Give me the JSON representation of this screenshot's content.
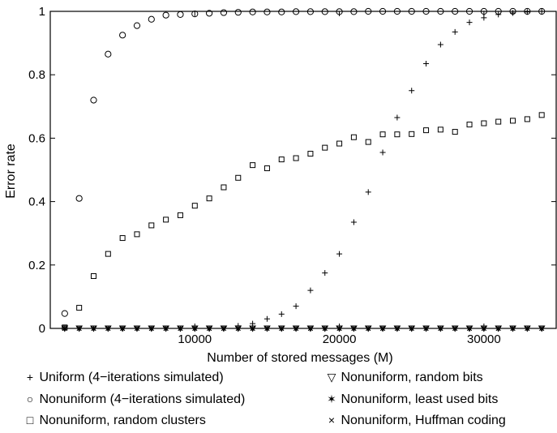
{
  "chart_data": {
    "type": "scatter",
    "title": "",
    "xlabel": "Number of stored messages (M)",
    "ylabel": "Error rate",
    "xlim": [
      0,
      35000
    ],
    "ylim": [
      0,
      1
    ],
    "xticks": [
      10000,
      20000,
      30000
    ],
    "xtick_labels": [
      "10000",
      "20000",
      "30000"
    ],
    "yticks": [
      0,
      0.2,
      0.4,
      0.6,
      0.8,
      1
    ],
    "ytick_labels": [
      "0",
      "0.2",
      "0.4",
      "0.6",
      "0.8",
      "1"
    ],
    "grid": false,
    "legend_position": "bottom",
    "series": [
      {
        "name": "Uniform (4−iterations simulated)",
        "marker": "plus",
        "x": [
          1000,
          2000,
          3000,
          4000,
          5000,
          6000,
          7000,
          8000,
          9000,
          10000,
          11000,
          12000,
          13000,
          14000,
          15000,
          16000,
          17000,
          18000,
          19000,
          20000,
          21000,
          22000,
          23000,
          24000,
          25000,
          26000,
          27000,
          28000,
          29000,
          30000,
          31000,
          32000,
          33000,
          34000
        ],
        "y": [
          0,
          0,
          0,
          0,
          0,
          0,
          0,
          0,
          0,
          0,
          0,
          0,
          0.008,
          0.015,
          0.03,
          0.045,
          0.07,
          0.12,
          0.175,
          0.235,
          0.335,
          0.43,
          0.555,
          0.665,
          0.75,
          0.835,
          0.895,
          0.935,
          0.965,
          0.98,
          0.99,
          0.995,
          0.998,
          1.0
        ]
      },
      {
        "name": "Nonuniform (4−iterations simulated)",
        "marker": "circle",
        "x": [
          1000,
          2000,
          3000,
          4000,
          5000,
          6000,
          7000,
          8000,
          9000,
          10000,
          11000,
          12000,
          13000,
          14000,
          15000,
          16000,
          17000,
          18000,
          19000,
          20000,
          21000,
          22000,
          23000,
          24000,
          25000,
          26000,
          27000,
          28000,
          29000,
          30000,
          31000,
          32000,
          33000,
          34000
        ],
        "y": [
          0.047,
          0.41,
          0.72,
          0.865,
          0.925,
          0.955,
          0.975,
          0.988,
          0.99,
          0.992,
          0.994,
          0.996,
          0.997,
          0.998,
          0.998,
          0.998,
          0.999,
          0.999,
          0.999,
          0.999,
          0.999,
          1.0,
          1.0,
          1.0,
          1.0,
          1.0,
          1.0,
          1.0,
          1.0,
          1.0,
          1.0,
          1.0,
          1.0,
          1.0
        ]
      },
      {
        "name": "Nonuniform, random clusters",
        "marker": "square",
        "x": [
          1000,
          2000,
          3000,
          4000,
          5000,
          6000,
          7000,
          8000,
          9000,
          10000,
          11000,
          12000,
          13000,
          14000,
          15000,
          16000,
          17000,
          18000,
          19000,
          20000,
          21000,
          22000,
          23000,
          24000,
          25000,
          26000,
          27000,
          28000,
          29000,
          30000,
          31000,
          32000,
          33000,
          34000
        ],
        "y": [
          0.003,
          0.065,
          0.165,
          0.235,
          0.285,
          0.297,
          0.325,
          0.343,
          0.357,
          0.387,
          0.41,
          0.445,
          0.475,
          0.515,
          0.505,
          0.533,
          0.537,
          0.551,
          0.57,
          0.583,
          0.603,
          0.588,
          0.612,
          0.612,
          0.613,
          0.625,
          0.627,
          0.62,
          0.643,
          0.647,
          0.652,
          0.655,
          0.66,
          0.673
        ]
      },
      {
        "name": "Nonuniform, random bits",
        "marker": "triangle-down",
        "x": [
          1000,
          2000,
          3000,
          4000,
          5000,
          6000,
          7000,
          8000,
          9000,
          10000,
          11000,
          12000,
          13000,
          14000,
          15000,
          16000,
          17000,
          18000,
          19000,
          20000,
          21000,
          22000,
          23000,
          24000,
          25000,
          26000,
          27000,
          28000,
          29000,
          30000,
          31000,
          32000,
          33000,
          34000
        ],
        "y": [
          0,
          0,
          0,
          0,
          0,
          0,
          0,
          0,
          0,
          0,
          0,
          0,
          0,
          0,
          0,
          0,
          0,
          0,
          0,
          0,
          0,
          0,
          0,
          0,
          0,
          0,
          0,
          0,
          0,
          0,
          0,
          0,
          0,
          0
        ]
      },
      {
        "name": "Nonuniform, least used bits",
        "marker": "star",
        "x": [
          1000,
          2000,
          3000,
          4000,
          5000,
          6000,
          7000,
          8000,
          9000,
          10000,
          11000,
          12000,
          13000,
          14000,
          15000,
          16000,
          17000,
          18000,
          19000,
          20000,
          21000,
          22000,
          23000,
          24000,
          25000,
          26000,
          27000,
          28000,
          29000,
          30000,
          31000,
          32000,
          33000,
          34000
        ],
        "y": [
          0,
          0,
          0,
          0,
          0,
          0,
          0,
          0,
          0,
          0,
          0,
          0,
          0,
          0,
          0,
          0,
          0,
          0,
          0,
          0,
          0,
          0,
          0,
          0,
          0,
          0,
          0,
          0,
          0,
          0,
          0,
          0,
          0,
          0
        ]
      },
      {
        "name": "Nonuniform, Huffman coding",
        "marker": "x",
        "x": [
          1000,
          2000,
          3000,
          4000,
          5000,
          6000,
          7000,
          8000,
          9000,
          10000,
          11000,
          12000,
          13000,
          14000,
          15000,
          16000,
          17000,
          18000,
          19000,
          20000,
          21000,
          22000,
          23000,
          24000,
          25000,
          26000,
          27000,
          28000,
          29000,
          30000,
          31000,
          32000,
          33000,
          34000
        ],
        "y": [
          0,
          0,
          0,
          0,
          0,
          0,
          0,
          0,
          0,
          0,
          0,
          0,
          0,
          0,
          0,
          0,
          0,
          0,
          0,
          0,
          0,
          0,
          0,
          0,
          0,
          0,
          0,
          0,
          0,
          0,
          0,
          0,
          0,
          0
        ]
      }
    ]
  }
}
